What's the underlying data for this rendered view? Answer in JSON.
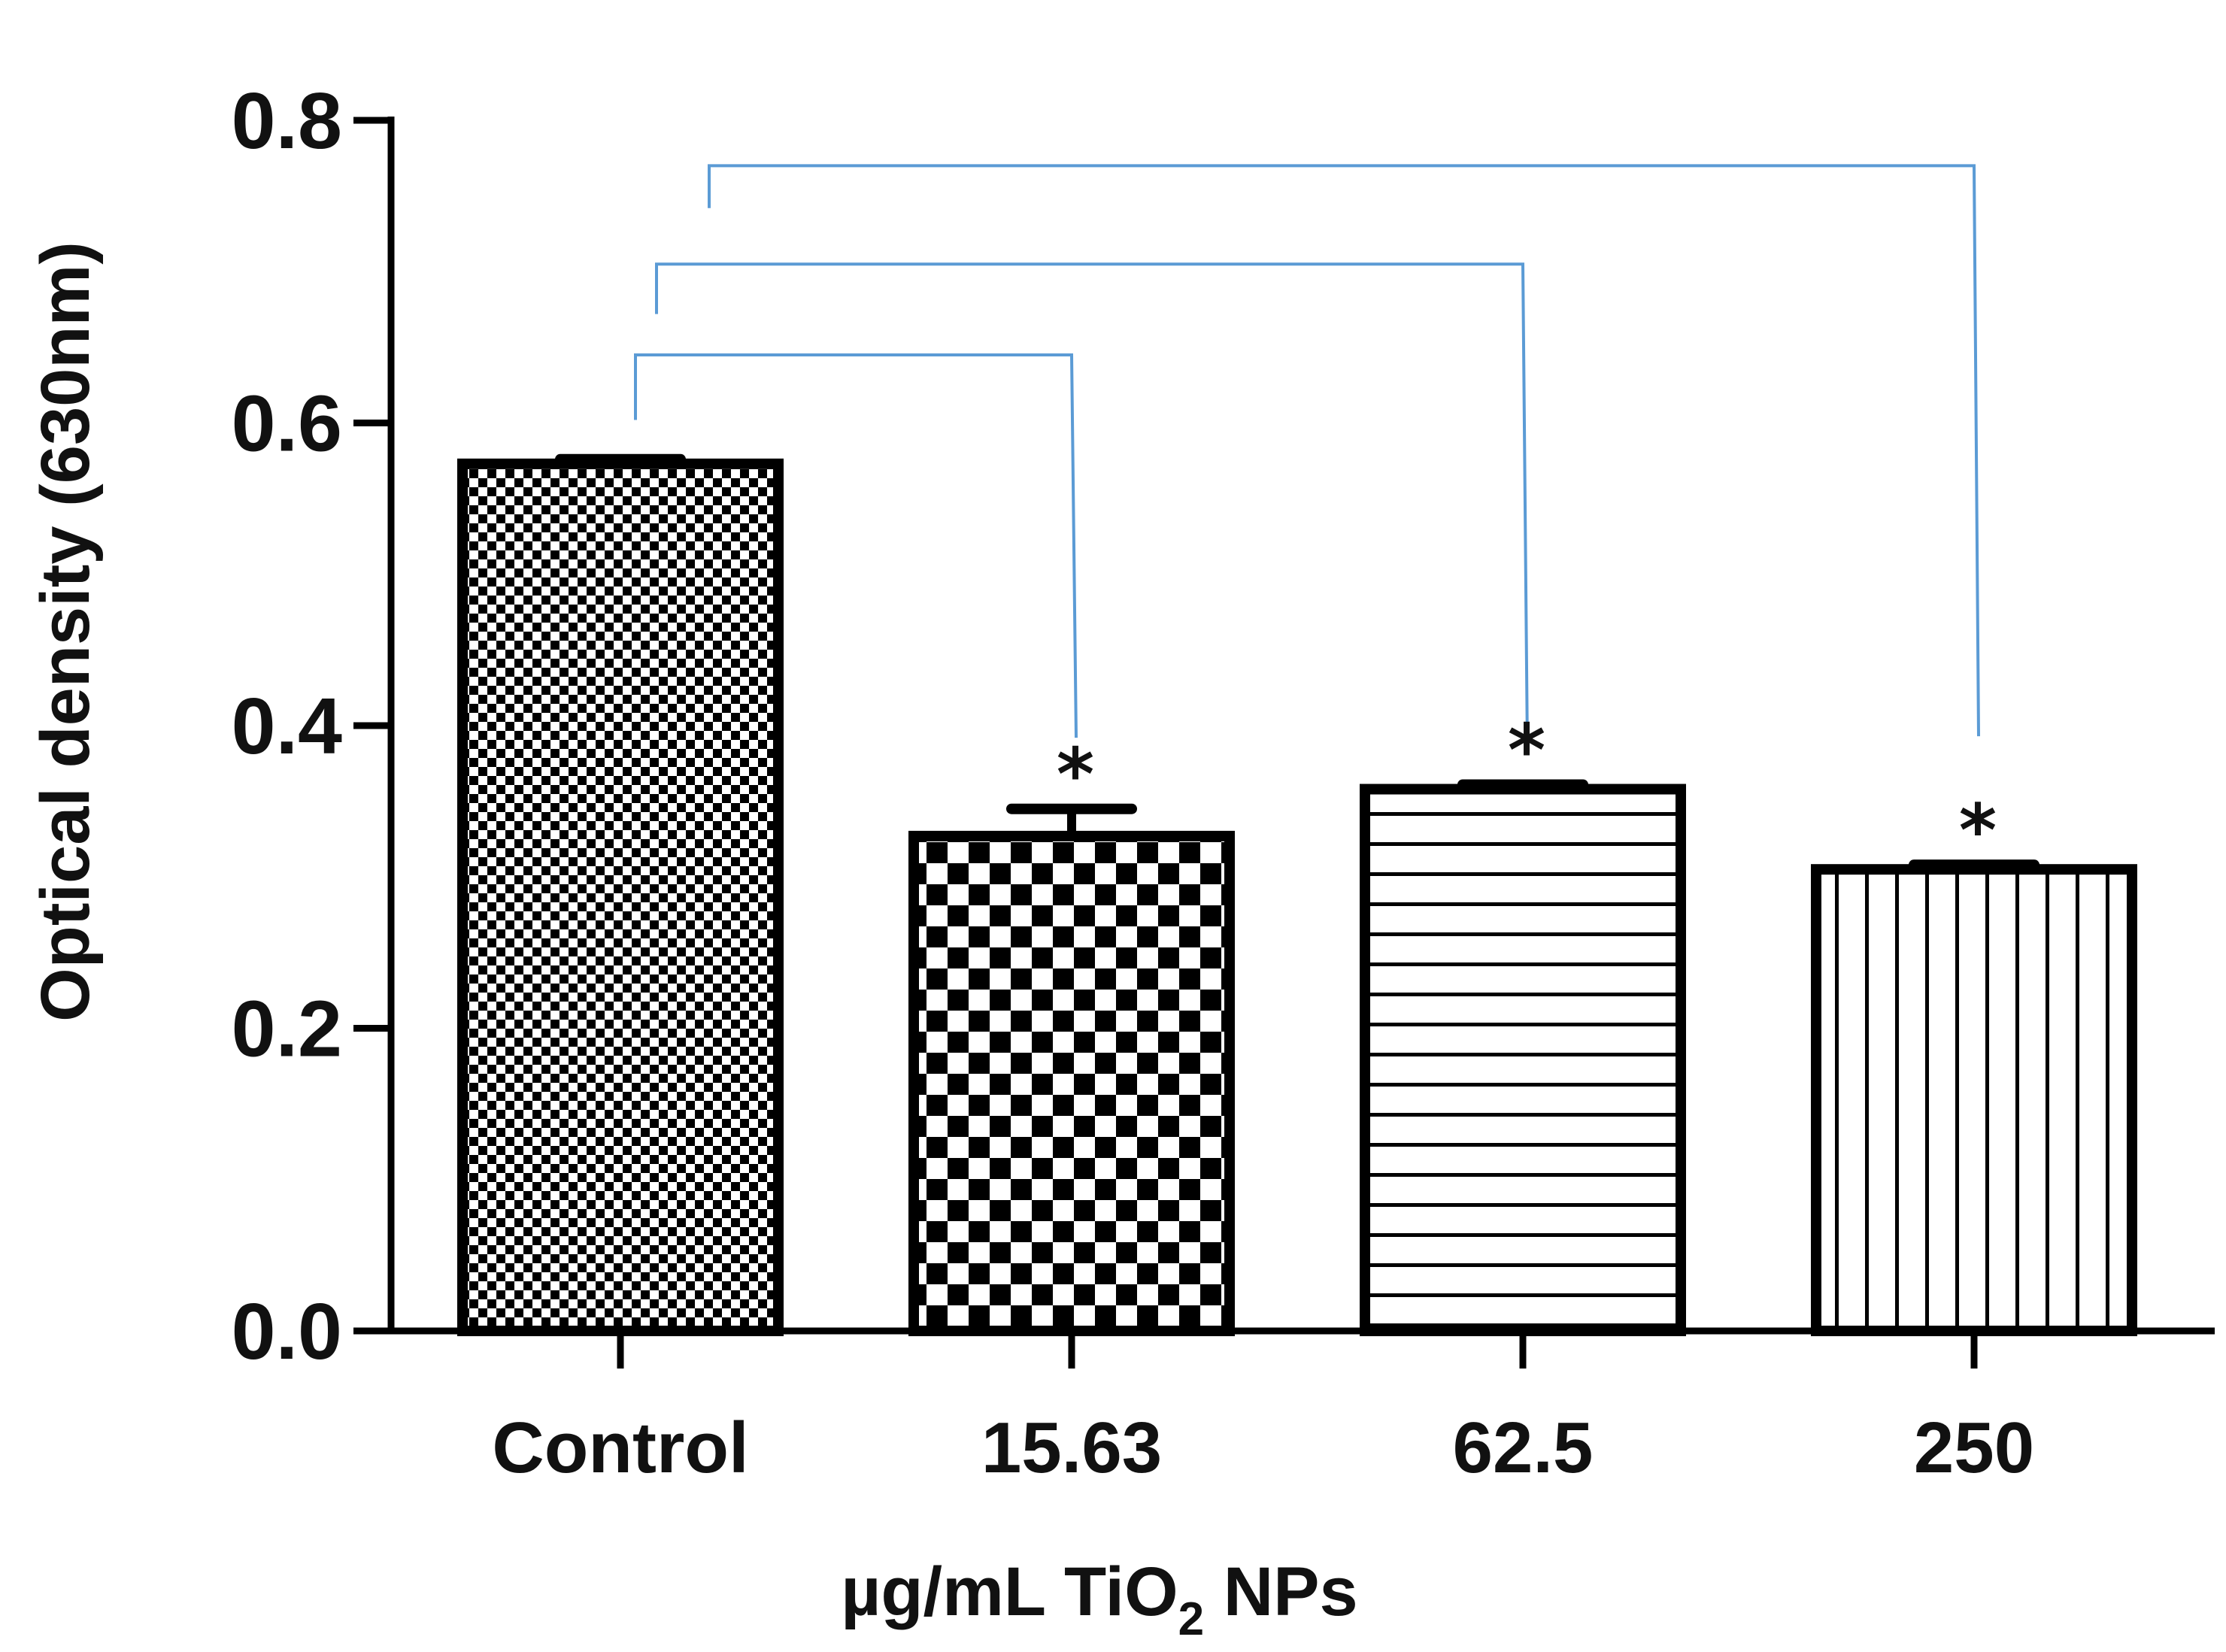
{
  "chart_data": {
    "type": "bar",
    "title": "",
    "xlabel": "µg/mL TiO",
    "xlabel_subscript": "2",
    "xlabel_suffix": " NPs",
    "ylabel": "Optical density (630nm)",
    "ylim": [
      0,
      0.8
    ],
    "yticks": [
      "0.0",
      "0.2",
      "0.4",
      "0.6",
      "0.8"
    ],
    "grid": false,
    "categories": [
      "Control",
      "15.63",
      "62.5",
      "250"
    ],
    "values": [
      0.573,
      0.327,
      0.358,
      0.305
    ],
    "errors": [
      0.003,
      0.018,
      0.003,
      0.003
    ],
    "patterns": [
      "fine-checker",
      "coarse-checker",
      "horizontal-lines",
      "vertical-lines"
    ],
    "significance": [
      "",
      "*",
      "*",
      "*"
    ],
    "comparisons": [
      {
        "from": "Control",
        "to": "15.63",
        "level": 0.645
      },
      {
        "from": "Control",
        "to": "62.5",
        "level": 0.705
      },
      {
        "from": "Control",
        "to": "250",
        "level": 0.77
      }
    ],
    "colors": {
      "bars": "#000000",
      "brackets": "#5b9bd5",
      "axis": "#000000"
    }
  }
}
